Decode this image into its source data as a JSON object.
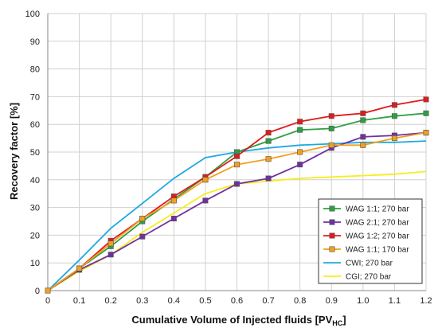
{
  "chart_data": {
    "type": "line",
    "xlabel": "Cumulative Volume of Injected fluids [PV",
    "xlabel_sub": "HC",
    "xlabel_end": "]",
    "ylabel": "Recovery factor [%]",
    "xlim": [
      0,
      1.2
    ],
    "ylim": [
      0,
      100
    ],
    "x_ticks": [
      "0",
      "0.1",
      "0.2",
      "0.3",
      "0.4",
      "0.5",
      "0.6",
      "0.7",
      "0.8",
      "0.9",
      "1.0",
      "1.1",
      "1.2"
    ],
    "y_ticks": [
      "0",
      "10",
      "20",
      "30",
      "40",
      "50",
      "60",
      "70",
      "80",
      "90",
      "100"
    ],
    "grid": true,
    "legend_position": "bottom-right",
    "series": [
      {
        "name": "WAG 1:1; 270 bar",
        "color": "#2ea043",
        "marker": "square",
        "x": [
          0,
          0.1,
          0.2,
          0.3,
          0.4,
          0.5,
          0.6,
          0.7,
          0.8,
          0.9,
          1.0,
          1.1,
          1.2
        ],
        "y": [
          0,
          8,
          16,
          25,
          33,
          41,
          50,
          54,
          58,
          58.5,
          61.5,
          63,
          64
        ]
      },
      {
        "name": "WAG 2:1; 270 bar",
        "color": "#7030a0",
        "marker": "square",
        "x": [
          0,
          0.1,
          0.2,
          0.3,
          0.4,
          0.5,
          0.6,
          0.7,
          0.8,
          0.9,
          1.0,
          1.1,
          1.2
        ],
        "y": [
          0,
          7.5,
          13,
          19.5,
          26,
          32.5,
          38.5,
          40.5,
          45.5,
          51.5,
          55.5,
          56,
          57
        ]
      },
      {
        "name": "WAG 1:2; 270 bar",
        "color": "#e01b1b",
        "marker": "square",
        "x": [
          0,
          0.1,
          0.2,
          0.3,
          0.4,
          0.5,
          0.6,
          0.7,
          0.8,
          0.9,
          1.0,
          1.1,
          1.2
        ],
        "y": [
          0,
          8,
          18,
          26,
          34,
          41,
          48.5,
          57,
          61,
          63,
          64,
          67,
          69
        ]
      },
      {
        "name": "WAG 1:1; 170 bar",
        "color": "#f0a020",
        "marker": "square",
        "x": [
          0,
          0.1,
          0.2,
          0.3,
          0.4,
          0.5,
          0.6,
          0.7,
          0.8,
          0.9,
          1.0,
          1.1,
          1.2
        ],
        "y": [
          0,
          8,
          17,
          26,
          32.5,
          40,
          45.5,
          47.5,
          50,
          52.5,
          52.5,
          55,
          57
        ]
      },
      {
        "name": "CWI; 270 bar",
        "color": "#1fa8e0",
        "marker": "none",
        "x": [
          0,
          0.1,
          0.2,
          0.3,
          0.4,
          0.5,
          0.6,
          0.7,
          0.8,
          0.9,
          1.0,
          1.1,
          1.2
        ],
        "y": [
          0,
          11,
          22.5,
          31.5,
          40.5,
          48,
          50,
          51.5,
          52.5,
          53,
          53.5,
          53.5,
          54
        ]
      },
      {
        "name": "CGI; 270 bar",
        "color": "#f5ee1a",
        "marker": "none",
        "x": [
          0,
          0.1,
          0.2,
          0.3,
          0.4,
          0.5,
          0.6,
          0.7,
          0.8,
          0.9,
          1.0,
          1.1,
          1.2
        ],
        "y": [
          0,
          7,
          13,
          21,
          28,
          35,
          38.5,
          39.5,
          40.5,
          41,
          41.5,
          42,
          43
        ]
      }
    ]
  }
}
